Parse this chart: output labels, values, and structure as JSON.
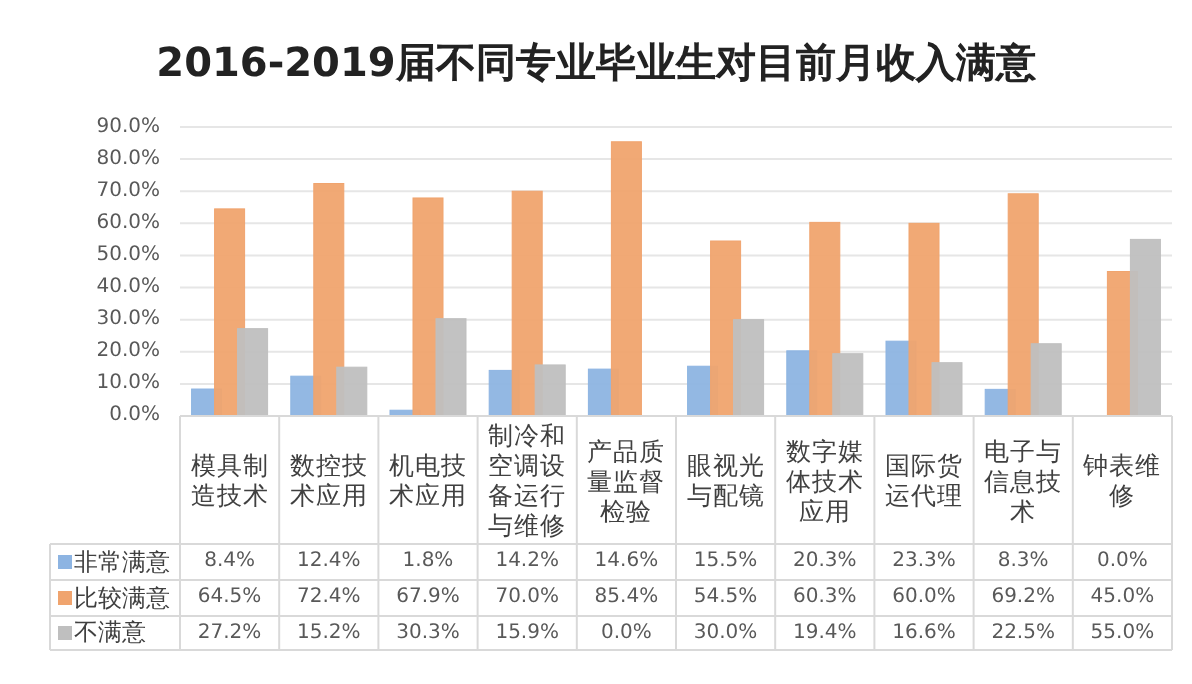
{
  "chart_data": {
    "type": "bar",
    "title": "2016-2019届不同专业毕业生对目前月收入满意",
    "categories": [
      "模具制造技术",
      "数控技术应用",
      "机电技术应用",
      "制冷和空调设备运行与维修",
      "产品质量监督检验",
      "眼视光与配镜",
      "数字媒体技术应用",
      "国际货运代理",
      "电子与信息技术",
      "钟表维修"
    ],
    "series": [
      {
        "name": "非常满意",
        "color": "#8db4e2",
        "values": [
          8.4,
          12.4,
          1.8,
          14.2,
          14.6,
          15.5,
          20.3,
          23.3,
          8.3,
          0.0
        ],
        "value_labels": [
          "8.4%",
          "12.4%",
          "1.8%",
          "14.2%",
          "14.6%",
          "15.5%",
          "20.3%",
          "23.3%",
          "8.3%",
          "0.0%"
        ]
      },
      {
        "name": "比较满意",
        "color": "#f0a46e",
        "values": [
          64.5,
          72.4,
          67.9,
          70.0,
          85.4,
          54.5,
          60.3,
          60.0,
          69.2,
          45.0
        ],
        "value_labels": [
          "64.5%",
          "72.4%",
          "67.9%",
          "70.0%",
          "85.4%",
          "54.5%",
          "60.3%",
          "60.0%",
          "69.2%",
          "45.0%"
        ]
      },
      {
        "name": "不满意",
        "color": "#bfbfbf",
        "values": [
          27.2,
          15.2,
          30.3,
          15.9,
          0.0,
          30.0,
          19.4,
          16.6,
          22.5,
          55.0
        ],
        "value_labels": [
          "27.2%",
          "15.2%",
          "30.3%",
          "15.9%",
          "0.0%",
          "30.0%",
          "19.4%",
          "16.6%",
          "22.5%",
          "55.0%"
        ]
      }
    ],
    "ylim": [
      0,
      90
    ],
    "yticks": [
      {
        "value": 0,
        "label": "0.0%"
      },
      {
        "value": 10,
        "label": "10.0%"
      },
      {
        "value": 20,
        "label": "20.0%"
      },
      {
        "value": 30,
        "label": "30.0%"
      },
      {
        "value": 40,
        "label": "40.0%"
      },
      {
        "value": 50,
        "label": "50.0%"
      },
      {
        "value": 60,
        "label": "60.0%"
      },
      {
        "value": 70,
        "label": "70.0%"
      },
      {
        "value": 80,
        "label": "80.0%"
      },
      {
        "value": 90,
        "label": "90.0%"
      }
    ],
    "grid": "y",
    "legend": "bottom"
  }
}
